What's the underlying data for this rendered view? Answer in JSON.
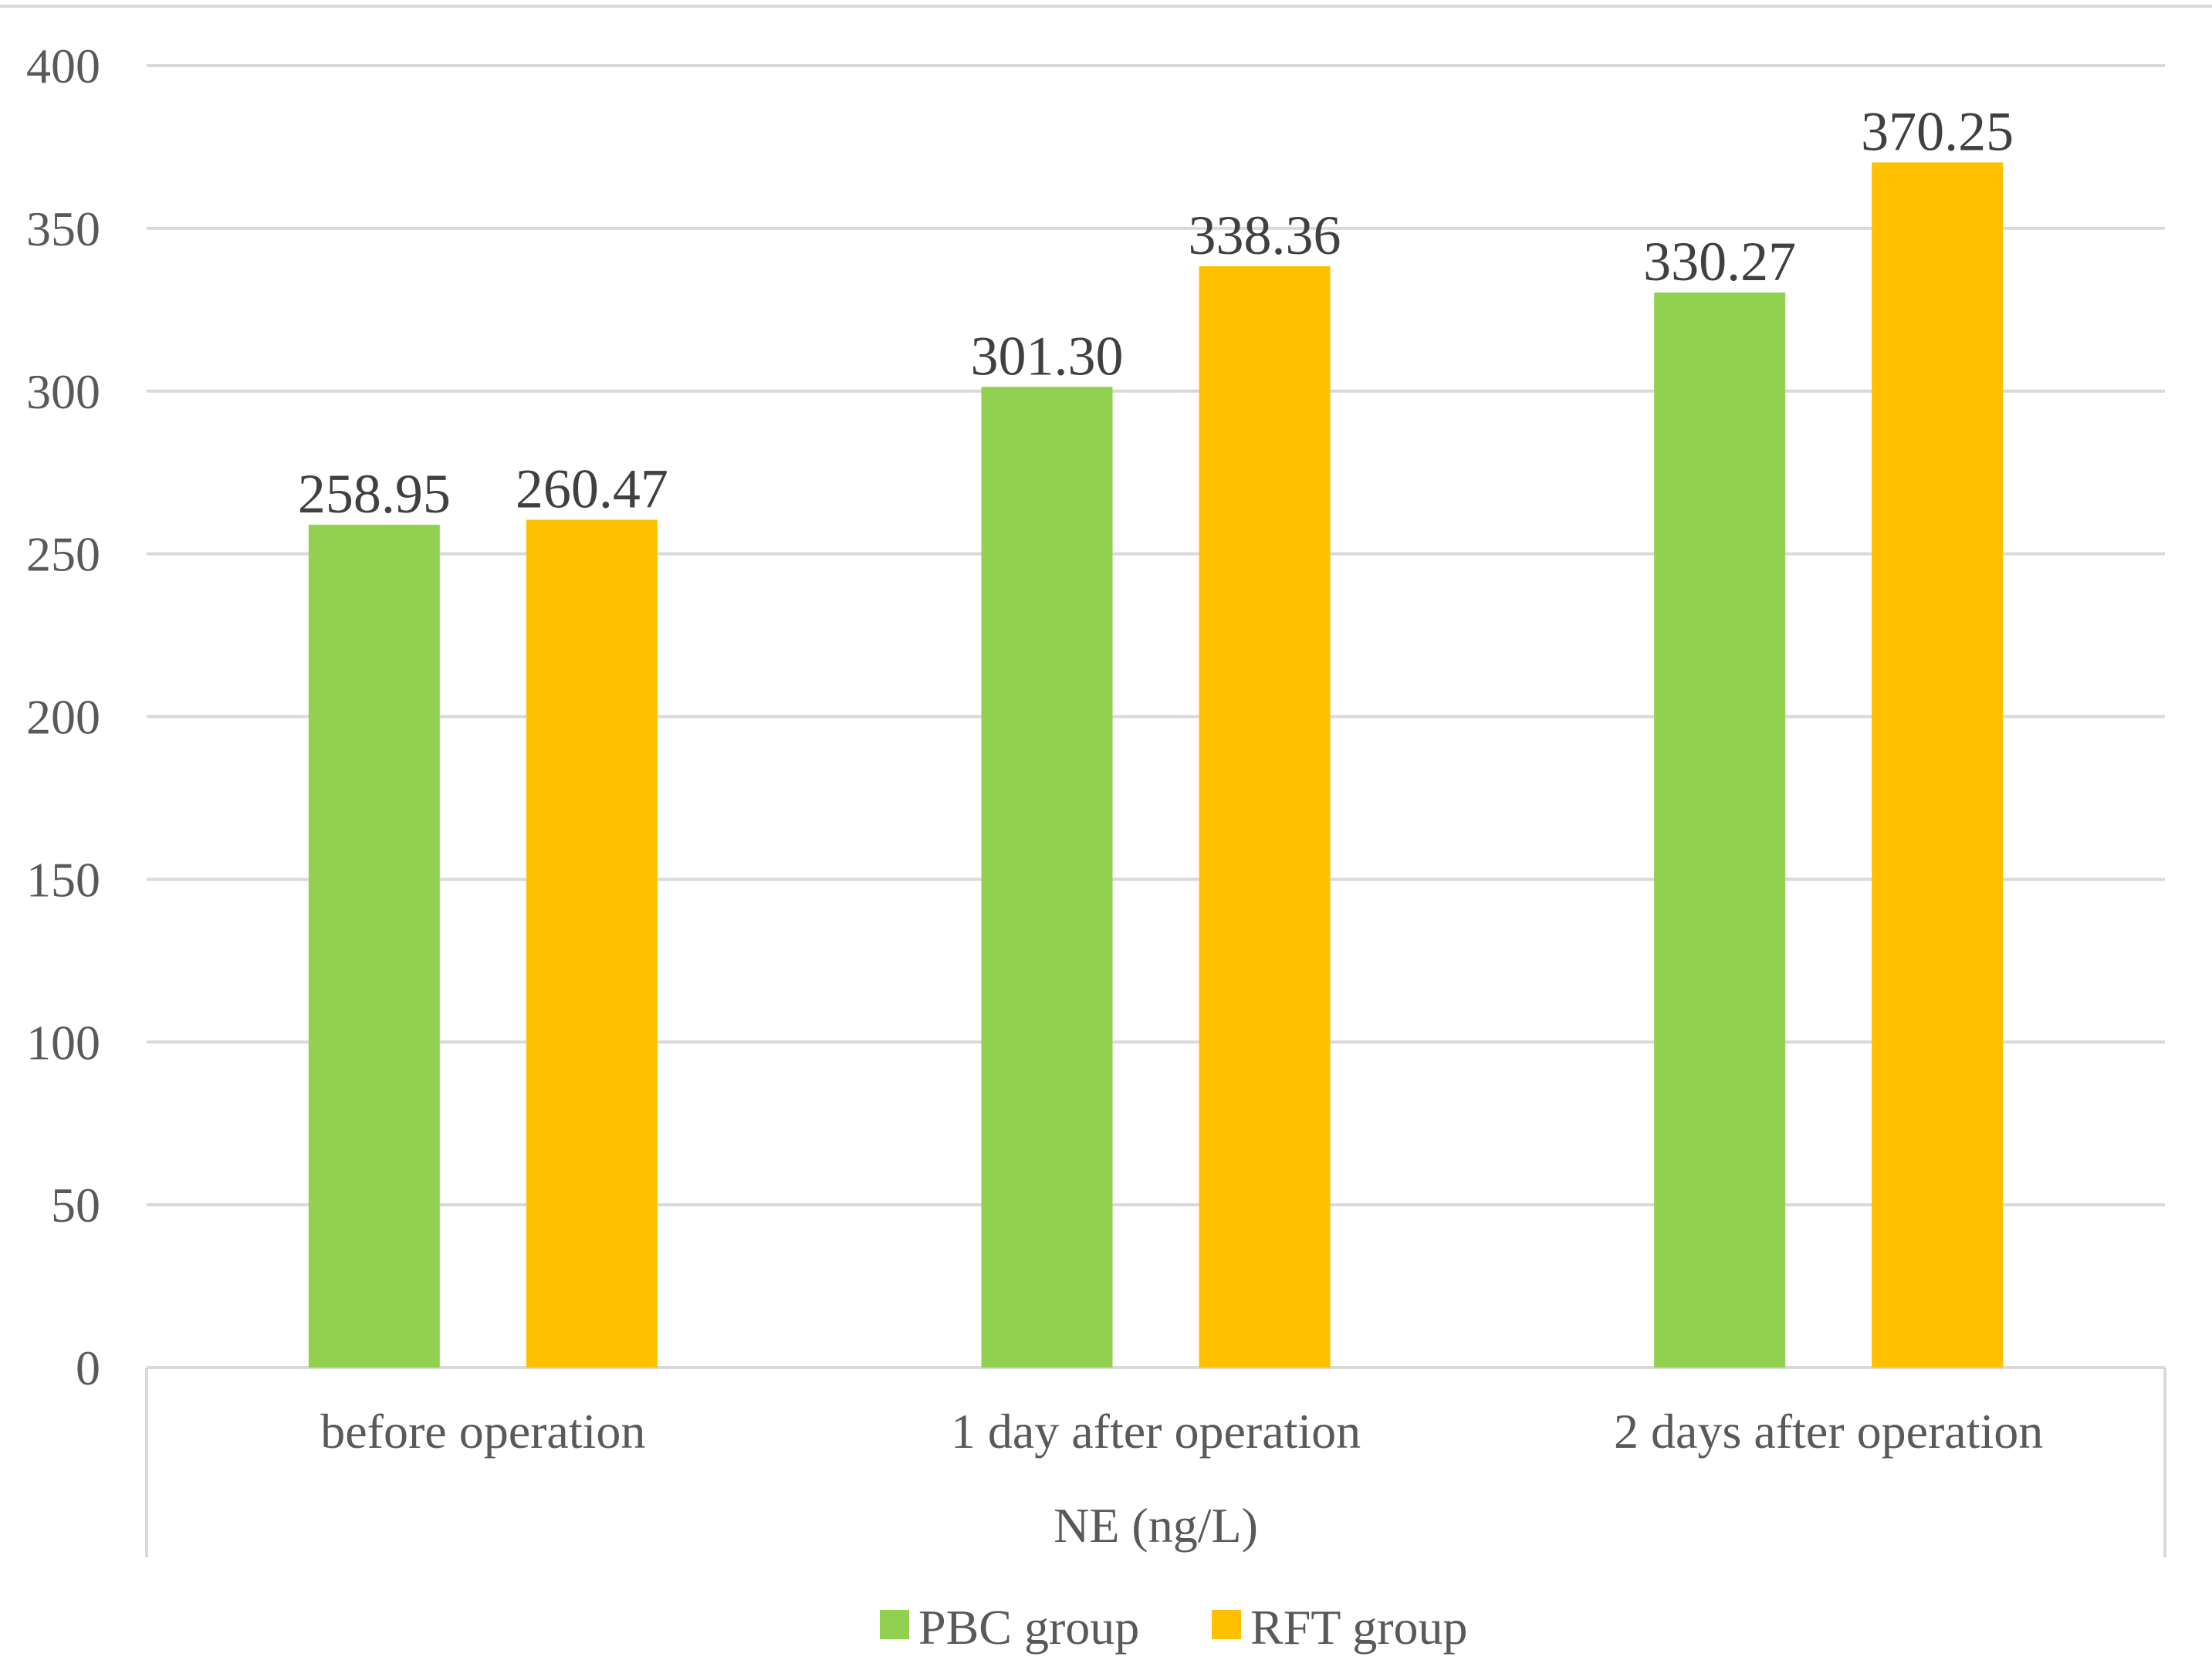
{
  "chart_data": {
    "type": "bar",
    "title": "",
    "xlabel": "NE (ng/L)",
    "ylabel": "",
    "categories": [
      "before operation",
      "1 day after operation",
      "2 days after operation"
    ],
    "series": [
      {
        "name": "PBC group",
        "color": "#92d050",
        "values": [
          258.95,
          301.3,
          330.27
        ],
        "labels": [
          "258.95",
          "301.30",
          "330.27"
        ]
      },
      {
        "name": "RFT group",
        "color": "#ffc000",
        "values": [
          260.47,
          338.36,
          370.25
        ],
        "labels": [
          "260.47",
          "338.36",
          "370.25"
        ]
      }
    ],
    "ylim": [
      0,
      400
    ],
    "yticks": [
      0,
      50,
      100,
      150,
      200,
      250,
      300,
      350,
      400
    ],
    "grid": true,
    "legend_position": "bottom"
  }
}
